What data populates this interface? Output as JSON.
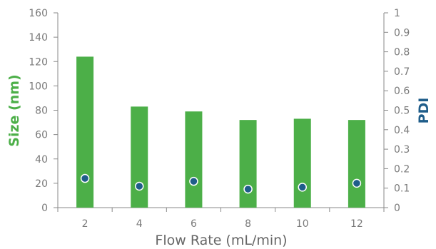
{
  "chart_data": {
    "type": "bar",
    "categories": [
      "2",
      "4",
      "6",
      "8",
      "10",
      "12"
    ],
    "series": [
      {
        "name": "Size (nm)",
        "type": "bar",
        "axis": "left",
        "color": "#4caf48",
        "values": [
          124,
          83,
          79,
          72,
          73,
          72
        ]
      },
      {
        "name": "PDI",
        "type": "scatter",
        "axis": "right",
        "color": "#1f5d8a",
        "values": [
          0.15,
          0.11,
          0.135,
          0.095,
          0.105,
          0.125
        ]
      }
    ],
    "xlabel": "Flow Rate (mL/min)",
    "ylabel": "Size (nm)",
    "ylabel_right": "PDI",
    "ylim": [
      0,
      160
    ],
    "ylim_right": [
      0,
      1
    ],
    "yticks": [
      "0",
      "20",
      "40",
      "60",
      "80",
      "100",
      "120",
      "140",
      "160"
    ],
    "yticks_right": [
      "0",
      "0.1",
      "0.2",
      "0.3",
      "0.4",
      "0.5",
      "0.6",
      "0.7",
      "0.8",
      "0.9",
      "1"
    ],
    "ylabel_color": "#4caf48",
    "ylabel_right_color": "#1f5d8a",
    "grid": false,
    "legend": "none"
  }
}
